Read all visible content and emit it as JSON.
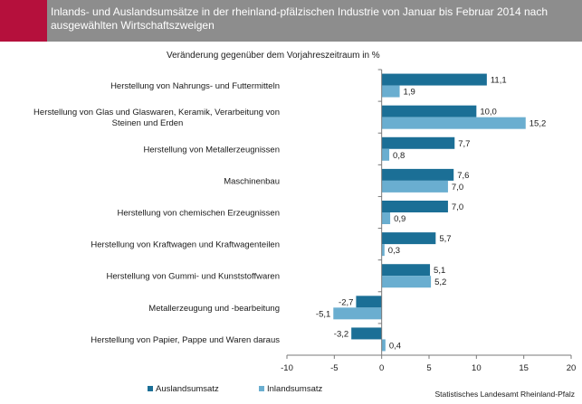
{
  "header": {
    "title": "Inlands- und Auslandsumsätze in der rheinland-pfälzischen Industrie von Januar bis Februar 2014 nach ausgewählten Wirtschaftszweigen",
    "accent_color": "#b5103c",
    "background_color": "#8d8d8d"
  },
  "source": "Statistisches Landesamt Rheinland-Pfalz",
  "chart_data": {
    "type": "bar",
    "orientation": "horizontal",
    "title": "Veränderung gegenüber dem Vorjahreszeitraum  in %",
    "categories": [
      [
        "Herstellung von Nahrungs- und Futtermitteln"
      ],
      [
        "Herstellung von Glas und Glaswaren, Keramik, Verarbeitung von",
        "Steinen und Erden"
      ],
      [
        "Herstellung von Metallerzeugnissen"
      ],
      [
        "Maschinenbau"
      ],
      [
        "Herstellung von chemischen Erzeugnissen"
      ],
      [
        "Herstellung von Kraftwagen und Kraftwagenteilen"
      ],
      [
        "Herstellung von Gummi- und Kunststoffwaren"
      ],
      [
        "Metallerzeugung und -bearbeitung"
      ],
      [
        "Herstellung von Papier, Pappe und Waren daraus"
      ]
    ],
    "series": [
      {
        "name": "Auslandsumsatz",
        "color": "#1b6f96",
        "values": [
          11.1,
          10.0,
          7.7,
          7.6,
          7.0,
          5.7,
          5.1,
          -2.7,
          -3.2
        ],
        "labels": [
          "11,1",
          "10,0",
          "7,7",
          "7,6",
          "7,0",
          "5,7",
          "5,1",
          "-2,7",
          "-3,2"
        ]
      },
      {
        "name": "Inlandsumsatz",
        "color": "#6aaed0",
        "values": [
          1.9,
          15.2,
          0.8,
          7.0,
          0.9,
          0.3,
          5.2,
          -5.1,
          0.4
        ],
        "labels": [
          "1,9",
          "15,2",
          "0,8",
          "7,0",
          "0,9",
          "0,3",
          "5,2",
          "-5,1",
          "0,4"
        ]
      }
    ],
    "xlim": [
      -10,
      20
    ],
    "xticks": [
      -10,
      -5,
      0,
      5,
      10,
      15,
      20
    ],
    "legend_position": "bottom-left",
    "grid": false
  }
}
